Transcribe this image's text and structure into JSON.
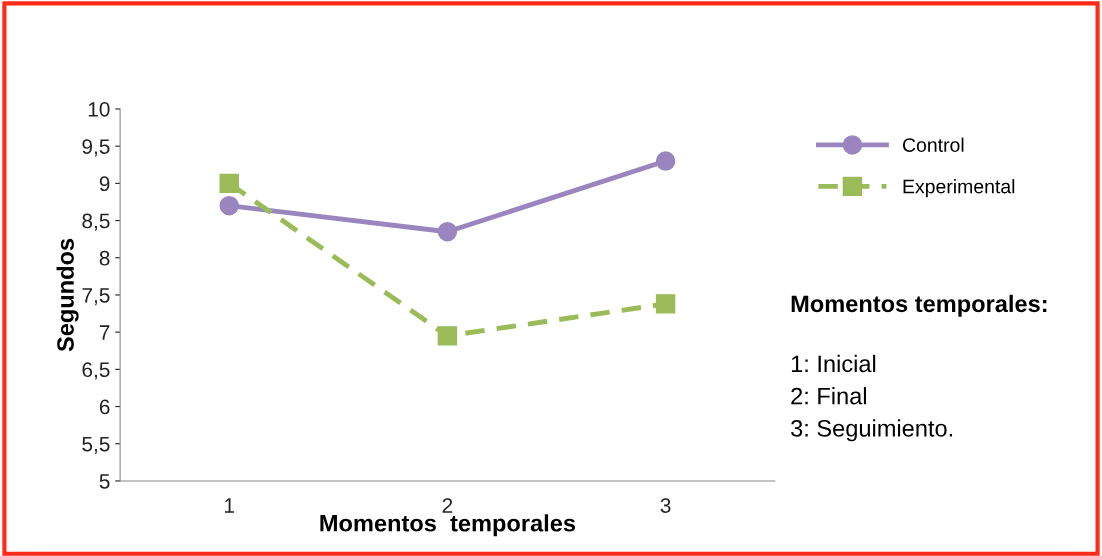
{
  "chart_data": {
    "type": "line",
    "xlabel": "Momentos  temporales",
    "ylabel": "Segundos",
    "categories": [
      "1",
      "2",
      "3"
    ],
    "series": [
      {
        "name": "Control",
        "color": "#9a85bf",
        "values": [
          8.7,
          8.35,
          9.3
        ],
        "marker": "circle",
        "line_style": "solid"
      },
      {
        "name": "Experimental",
        "color": "#9bbb59",
        "values": [
          9.0,
          6.95,
          7.38
        ],
        "marker": "square",
        "line_style": "dashed"
      }
    ],
    "ylim": [
      5,
      10
    ],
    "yticks": [
      5,
      {
        "value": 5.5,
        "label": "5,5"
      },
      6,
      {
        "value": 6.5,
        "label": "6,5"
      },
      7,
      {
        "value": 7.5,
        "label": "7,5"
      },
      8,
      {
        "value": 8.5,
        "label": "8,5"
      },
      9,
      {
        "value": 9.5,
        "label": "9,5"
      },
      10
    ],
    "grid": false,
    "legend": "right",
    "annotations": [
      "Momentos temporales:",
      "1: Inicial",
      "2: Final",
      "3: Seguimiento."
    ]
  }
}
